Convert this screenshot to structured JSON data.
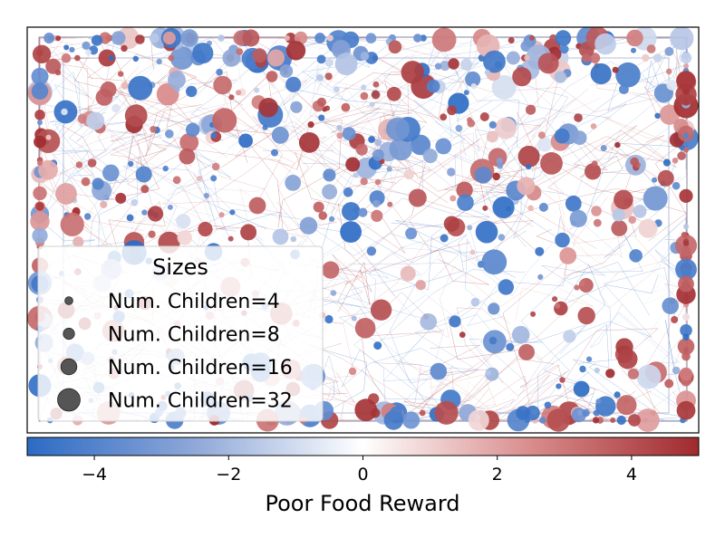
{
  "chart_data": {
    "type": "scatter",
    "title": "",
    "xlabel": "",
    "ylabel": "",
    "axes_ticks_visible": false,
    "environment_walls": true,
    "trajectory_lines": true,
    "colorbar": {
      "label": "Poor Food Reward",
      "range": [
        -5,
        5
      ],
      "ticks": [
        -4,
        -2,
        0,
        2,
        4
      ],
      "tick_labels": [
        "−4",
        "−2",
        "0",
        "2",
        "4"
      ],
      "colormap": [
        "#2c6bc4",
        "#8fa8d8",
        "#ffffff",
        "#d98c8c",
        "#a02a2e"
      ]
    },
    "legend": {
      "title": "Sizes",
      "placement": "lower-left",
      "entries": [
        {
          "label": "Num. Children=4",
          "children": 4
        },
        {
          "label": "Num. Children=8",
          "children": 8
        },
        {
          "label": "Num. Children=16",
          "children": 16
        },
        {
          "label": "Num. Children=32",
          "children": 32
        }
      ],
      "marker_color": "#555555"
    },
    "description_encoding": "Each circle is an agent; color = poor food reward, size = number of children",
    "sample_count": 700
  }
}
